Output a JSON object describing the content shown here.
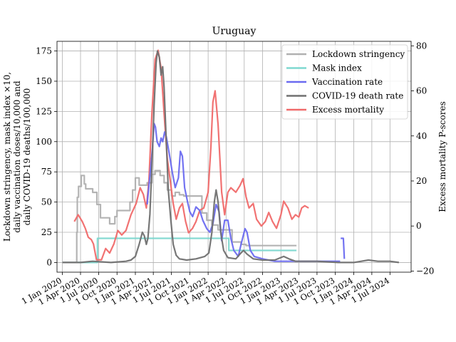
{
  "chart_data": {
    "type": "line",
    "title": "Uruguay",
    "ylabel_left": [
      "Lockdown stringency, mask index ×10,",
      "daily vaccination doses/10,000 and",
      "daily COVID-19 deaths/100,000"
    ],
    "ylabel_right": "Excess mortality P-scores",
    "ylim_left": [
      -8,
      183
    ],
    "ylim_right": [
      -20.5,
      82
    ],
    "yticks_left": [
      0,
      25,
      50,
      75,
      100,
      125,
      150,
      175
    ],
    "yticks_right": [
      -20,
      0,
      20,
      40,
      60,
      80
    ],
    "xlim": [
      "2019-12-05",
      "2024-10-15"
    ],
    "xticks": [
      {
        "date": "2020-01-01",
        "label": "1 Jan 2020"
      },
      {
        "date": "2020-04-01",
        "label": "1 Apr 2020"
      },
      {
        "date": "2020-07-01",
        "label": "1 Jul 2020"
      },
      {
        "date": "2020-10-01",
        "label": "1 Oct 2020"
      },
      {
        "date": "2021-01-01",
        "label": "1 Jan 2021"
      },
      {
        "date": "2021-04-01",
        "label": "1 Apr 2021"
      },
      {
        "date": "2021-07-01",
        "label": "1 Jul 2021"
      },
      {
        "date": "2021-10-01",
        "label": "1 Oct 2021"
      },
      {
        "date": "2022-01-01",
        "label": "1 Jan 2022"
      },
      {
        "date": "2022-04-01",
        "label": "1 Apr 2022"
      },
      {
        "date": "2022-07-01",
        "label": "1 Jul 2022"
      },
      {
        "date": "2022-10-01",
        "label": "1 Oct 2022"
      },
      {
        "date": "2023-01-01",
        "label": "1 Jan 2023"
      },
      {
        "date": "2023-04-01",
        "label": "1 Apr 2023"
      },
      {
        "date": "2023-07-01",
        "label": "1 Jul 2023"
      },
      {
        "date": "2023-10-01",
        "label": "1 Oct 2023"
      },
      {
        "date": "2024-01-01",
        "label": "1 Jan 2024"
      },
      {
        "date": "2024-04-01",
        "label": "1 Apr 2024"
      },
      {
        "date": "2024-07-01",
        "label": "1 Jul 2024"
      }
    ],
    "grid": true,
    "legend_position": "top-right",
    "series": [
      {
        "name": "Lockdown stringency",
        "axis": "left",
        "color": "#b0b0b0",
        "step": true,
        "points": [
          [
            "2020-01-01",
            0
          ],
          [
            "2020-03-12",
            0
          ],
          [
            "2020-03-13",
            25
          ],
          [
            "2020-03-16",
            54
          ],
          [
            "2020-03-22",
            63
          ],
          [
            "2020-04-05",
            72
          ],
          [
            "2020-04-20",
            65
          ],
          [
            "2020-04-27",
            61
          ],
          [
            "2020-06-01",
            58
          ],
          [
            "2020-06-22",
            48
          ],
          [
            "2020-07-10",
            37
          ],
          [
            "2020-08-25",
            32
          ],
          [
            "2020-09-20",
            38
          ],
          [
            "2020-10-01",
            43
          ],
          [
            "2020-11-15",
            43
          ],
          [
            "2020-12-05",
            50
          ],
          [
            "2020-12-18",
            60
          ],
          [
            "2021-01-01",
            70
          ],
          [
            "2021-01-20",
            64
          ],
          [
            "2021-03-01",
            66
          ],
          [
            "2021-03-25",
            73
          ],
          [
            "2021-04-10",
            76
          ],
          [
            "2021-05-05",
            72
          ],
          [
            "2021-05-25",
            66
          ],
          [
            "2021-06-10",
            60
          ],
          [
            "2021-07-01",
            55
          ],
          [
            "2021-07-20",
            58
          ],
          [
            "2021-08-10",
            56
          ],
          [
            "2021-09-01",
            55
          ],
          [
            "2021-11-20",
            55
          ],
          [
            "2021-12-01",
            41
          ],
          [
            "2021-12-25",
            35
          ],
          [
            "2022-01-20",
            31
          ],
          [
            "2022-02-20",
            27
          ],
          [
            "2022-04-01",
            27
          ],
          [
            "2022-05-01",
            17
          ],
          [
            "2022-06-15",
            15
          ],
          [
            "2022-07-10",
            14
          ],
          [
            "2023-03-20",
            14
          ]
        ]
      },
      {
        "name": "Mask index",
        "axis": "left",
        "color": "#7fd8d0",
        "step": true,
        "points": [
          [
            "2020-01-01",
            0
          ],
          [
            "2020-03-15",
            0
          ],
          [
            "2020-03-22",
            0
          ],
          [
            "2020-06-20",
            0
          ],
          [
            "2020-06-25",
            20
          ],
          [
            "2022-04-10",
            20
          ],
          [
            "2022-04-15",
            10
          ],
          [
            "2023-03-20",
            10
          ]
        ]
      },
      {
        "name": "Vaccination rate",
        "axis": "left",
        "color": "#6b6bf0",
        "step": false,
        "segments": [
          [
            [
              "2021-03-01",
              48
            ],
            [
              "2021-03-15",
              72
            ],
            [
              "2021-03-28",
              95
            ],
            [
              "2021-04-05",
              115
            ],
            [
              "2021-04-12",
              112
            ],
            [
              "2021-04-20",
              100
            ],
            [
              "2021-05-01",
              96
            ],
            [
              "2021-05-10",
              103
            ],
            [
              "2021-05-18",
              100
            ],
            [
              "2021-05-28",
              108
            ],
            [
              "2021-06-05",
              104
            ],
            [
              "2021-06-20",
              90
            ],
            [
              "2021-07-05",
              75
            ],
            [
              "2021-07-20",
              62
            ],
            [
              "2021-08-05",
              70
            ],
            [
              "2021-08-15",
              92
            ],
            [
              "2021-08-25",
              88
            ],
            [
              "2021-09-05",
              62
            ],
            [
              "2021-09-20",
              50
            ],
            [
              "2021-10-01",
              42
            ],
            [
              "2021-10-15",
              38
            ],
            [
              "2021-11-01",
              46
            ],
            [
              "2021-11-20",
              43
            ],
            [
              "2021-12-05",
              35
            ],
            [
              "2021-12-25",
              28
            ],
            [
              "2022-01-10",
              25
            ],
            [
              "2022-01-25",
              32
            ],
            [
              "2022-02-10",
              48
            ],
            [
              "2022-02-25",
              42
            ],
            [
              "2022-03-10",
              18
            ],
            [
              "2022-03-25",
              35
            ],
            [
              "2022-04-10",
              35
            ],
            [
              "2022-04-25",
              20
            ],
            [
              "2022-05-10",
              10
            ],
            [
              "2022-06-01",
              5
            ],
            [
              "2022-06-15",
              15
            ],
            [
              "2022-07-05",
              28
            ],
            [
              "2022-07-15",
              25
            ],
            [
              "2022-08-01",
              10
            ],
            [
              "2022-08-20",
              5
            ],
            [
              "2022-10-01",
              3
            ],
            [
              "2022-12-01",
              1
            ],
            [
              "2023-04-01",
              1
            ],
            [
              "2023-09-01",
              1
            ],
            [
              "2023-10-25",
              1
            ]
          ],
          [
            [
              "2023-10-28",
              20
            ],
            [
              "2023-11-10",
              20
            ],
            [
              "2023-11-15",
              3
            ]
          ]
        ]
      },
      {
        "name": "COVID-19 death rate",
        "axis": "left",
        "color": "#707070",
        "step": false,
        "points": [
          [
            "2020-01-01",
            0
          ],
          [
            "2020-04-01",
            0
          ],
          [
            "2020-06-01",
            1
          ],
          [
            "2020-09-01",
            0
          ],
          [
            "2020-11-15",
            1
          ],
          [
            "2020-12-10",
            2
          ],
          [
            "2021-01-01",
            5
          ],
          [
            "2021-01-20",
            15
          ],
          [
            "2021-02-05",
            25
          ],
          [
            "2021-02-15",
            22
          ],
          [
            "2021-02-25",
            15
          ],
          [
            "2021-03-05",
            20
          ],
          [
            "2021-03-15",
            40
          ],
          [
            "2021-03-25",
            80
          ],
          [
            "2021-04-05",
            130
          ],
          [
            "2021-04-15",
            165
          ],
          [
            "2021-04-22",
            175
          ],
          [
            "2021-05-01",
            170
          ],
          [
            "2021-05-10",
            155
          ],
          [
            "2021-05-18",
            162
          ],
          [
            "2021-05-25",
            145
          ],
          [
            "2021-06-05",
            100
          ],
          [
            "2021-06-15",
            60
          ],
          [
            "2021-06-28",
            35
          ],
          [
            "2021-07-10",
            15
          ],
          [
            "2021-07-25",
            6
          ],
          [
            "2021-08-10",
            3
          ],
          [
            "2021-09-15",
            2
          ],
          [
            "2021-11-01",
            3
          ],
          [
            "2021-12-15",
            5
          ],
          [
            "2022-01-05",
            8
          ],
          [
            "2022-01-20",
            25
          ],
          [
            "2022-02-01",
            50
          ],
          [
            "2022-02-10",
            60
          ],
          [
            "2022-02-20",
            50
          ],
          [
            "2022-03-05",
            25
          ],
          [
            "2022-03-20",
            10
          ],
          [
            "2022-04-10",
            4
          ],
          [
            "2022-05-20",
            3
          ],
          [
            "2022-06-15",
            8
          ],
          [
            "2022-06-28",
            10
          ],
          [
            "2022-07-15",
            7
          ],
          [
            "2022-08-15",
            3
          ],
          [
            "2022-10-01",
            2
          ],
          [
            "2022-12-01",
            2
          ],
          [
            "2023-01-15",
            5
          ],
          [
            "2023-02-10",
            3
          ],
          [
            "2023-03-15",
            1
          ],
          [
            "2023-07-01",
            1
          ],
          [
            "2023-10-15",
            0
          ],
          [
            "2024-01-01",
            0
          ],
          [
            "2024-03-15",
            2
          ],
          [
            "2024-05-01",
            1
          ],
          [
            "2024-07-01",
            1
          ],
          [
            "2024-08-15",
            0
          ]
        ]
      },
      {
        "name": "Excess mortality",
        "axis": "right",
        "color": "#f06a6a",
        "step": false,
        "points": [
          [
            "2020-03-01",
            2
          ],
          [
            "2020-03-20",
            5
          ],
          [
            "2020-04-10",
            2
          ],
          [
            "2020-04-25",
            -1
          ],
          [
            "2020-05-10",
            -5
          ],
          [
            "2020-05-25",
            -6
          ],
          [
            "2020-06-05",
            -8
          ],
          [
            "2020-06-20",
            -15
          ],
          [
            "2020-07-15",
            -15
          ],
          [
            "2020-08-05",
            -10
          ],
          [
            "2020-08-25",
            -12
          ],
          [
            "2020-09-15",
            -8
          ],
          [
            "2020-10-05",
            -2
          ],
          [
            "2020-10-25",
            -4
          ],
          [
            "2020-11-15",
            -2
          ],
          [
            "2020-12-10",
            5
          ],
          [
            "2021-01-05",
            10
          ],
          [
            "2021-01-25",
            17
          ],
          [
            "2021-02-10",
            14
          ],
          [
            "2021-02-25",
            8
          ],
          [
            "2021-03-10",
            20
          ],
          [
            "2021-03-25",
            50
          ],
          [
            "2021-04-10",
            74
          ],
          [
            "2021-04-25",
            78
          ],
          [
            "2021-05-10",
            70
          ],
          [
            "2021-05-25",
            50
          ],
          [
            "2021-06-10",
            30
          ],
          [
            "2021-06-25",
            20
          ],
          [
            "2021-07-10",
            10
          ],
          [
            "2021-07-25",
            3
          ],
          [
            "2021-08-10",
            8
          ],
          [
            "2021-08-25",
            10
          ],
          [
            "2021-09-10",
            2
          ],
          [
            "2021-09-25",
            -3
          ],
          [
            "2021-10-15",
            -1
          ],
          [
            "2021-11-01",
            2
          ],
          [
            "2021-11-20",
            7
          ],
          [
            "2021-12-10",
            8
          ],
          [
            "2022-01-01",
            15
          ],
          [
            "2022-01-15",
            35
          ],
          [
            "2022-01-25",
            55
          ],
          [
            "2022-02-05",
            60
          ],
          [
            "2022-02-20",
            45
          ],
          [
            "2022-03-10",
            15
          ],
          [
            "2022-03-25",
            5
          ],
          [
            "2022-04-10",
            15
          ],
          [
            "2022-04-25",
            17
          ],
          [
            "2022-05-20",
            15
          ],
          [
            "2022-06-10",
            18
          ],
          [
            "2022-06-25",
            21
          ],
          [
            "2022-07-10",
            13
          ],
          [
            "2022-07-25",
            8
          ],
          [
            "2022-08-15",
            10
          ],
          [
            "2022-09-01",
            3
          ],
          [
            "2022-09-25",
            0
          ],
          [
            "2022-10-15",
            2
          ],
          [
            "2022-11-01",
            6
          ],
          [
            "2022-11-20",
            2
          ],
          [
            "2022-12-10",
            -1
          ],
          [
            "2023-01-01",
            5
          ],
          [
            "2023-01-15",
            11
          ],
          [
            "2023-02-05",
            8
          ],
          [
            "2023-02-25",
            3
          ],
          [
            "2023-03-15",
            5
          ],
          [
            "2023-04-01",
            4
          ],
          [
            "2023-04-15",
            8
          ],
          [
            "2023-05-01",
            9
          ],
          [
            "2023-05-20",
            8
          ]
        ]
      }
    ]
  }
}
